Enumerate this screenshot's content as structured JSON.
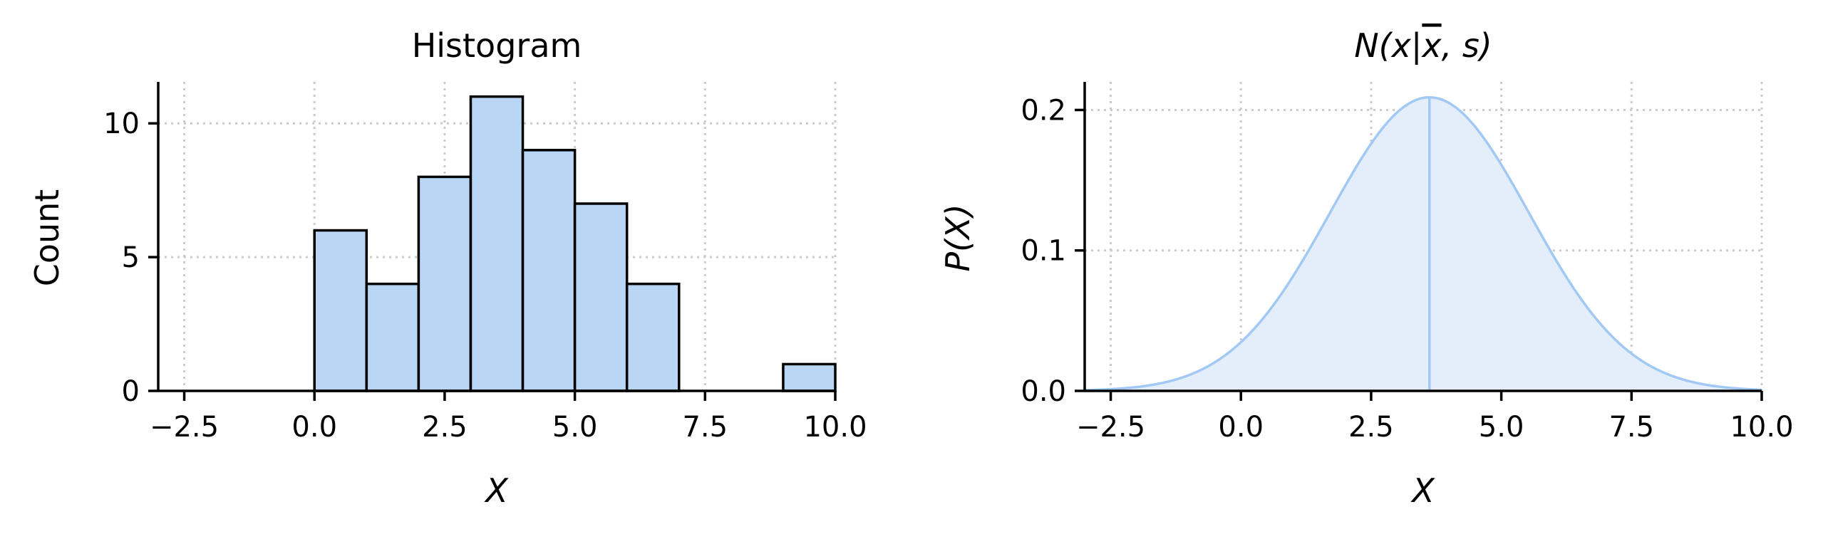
{
  "colors": {
    "bar_fill": "#b9d7f4",
    "bar_edge": "#000000",
    "curve": "#a1c9f4",
    "fill_under": "#e3eefa"
  },
  "chart_data": [
    {
      "type": "bar",
      "title": "Histogram",
      "xlabel": "X",
      "ylabel": "Count",
      "xlim": [
        -3.0,
        10.0
      ],
      "ylim": [
        0,
        11.55
      ],
      "xticks": [
        -2.5,
        0.0,
        2.5,
        5.0,
        7.5,
        10.0
      ],
      "xtick_labels": [
        "−2.5",
        "0.0",
        "2.5",
        "5.0",
        "7.5",
        "10.0"
      ],
      "yticks": [
        0,
        5,
        10
      ],
      "ytick_labels": [
        "0",
        "5",
        "10"
      ],
      "bin_edges": [
        0,
        1,
        2,
        3,
        4,
        5,
        6,
        7,
        8,
        9,
        10
      ],
      "values": [
        6,
        4,
        8,
        11,
        9,
        7,
        4,
        0,
        0,
        1
      ],
      "grid": true
    },
    {
      "type": "area",
      "title": "N(x|x̄, s)",
      "xlabel": "X",
      "ylabel": "P(X)",
      "xlim": [
        -3.0,
        10.0
      ],
      "ylim": [
        0,
        0.22
      ],
      "xticks": [
        -2.5,
        0.0,
        2.5,
        5.0,
        7.5,
        10.0
      ],
      "xtick_labels": [
        "−2.5",
        "0.0",
        "2.5",
        "5.0",
        "7.5",
        "10.0"
      ],
      "yticks": [
        0.0,
        0.1,
        0.2
      ],
      "ytick_labels": [
        "0.0",
        "0.1",
        "0.2"
      ],
      "distribution": "normal",
      "mean": 3.62,
      "sd": 1.91,
      "peak": 0.209,
      "mean_line": true,
      "grid": true
    }
  ]
}
